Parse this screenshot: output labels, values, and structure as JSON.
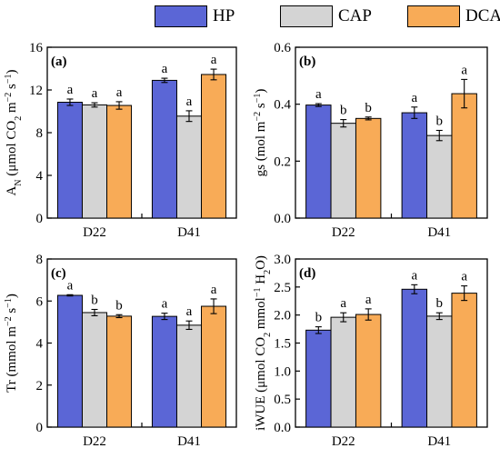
{
  "legend": {
    "items": [
      {
        "label": "HP",
        "color": "#5b66d6"
      },
      {
        "label": "CAP",
        "color": "#d4d4d4"
      },
      {
        "label": "DCAP",
        "color": "#f8ab57"
      }
    ]
  },
  "chart_data": [
    {
      "type": "bar",
      "panel": "(a)",
      "ylabel": "A_N (μmol CO₂ m⁻² s⁻¹)",
      "ylim": [
        0,
        16
      ],
      "yticks": [
        0,
        4,
        8,
        12,
        16
      ],
      "categories": [
        "D22",
        "D41"
      ],
      "series": [
        {
          "name": "HP",
          "values": [
            10.85,
            12.9
          ],
          "errors": [
            0.3,
            0.2
          ]
        },
        {
          "name": "CAP",
          "values": [
            10.6,
            9.55
          ],
          "errors": [
            0.2,
            0.5
          ]
        },
        {
          "name": "DCAP",
          "values": [
            10.55,
            13.45
          ],
          "errors": [
            0.35,
            0.5
          ]
        }
      ],
      "letters": [
        [
          "a",
          "a",
          "a"
        ],
        [
          "a",
          "a",
          "a"
        ]
      ]
    },
    {
      "type": "bar",
      "panel": "(b)",
      "ylabel": "gs (mol m⁻² s⁻¹)",
      "ylim": [
        0,
        0.6
      ],
      "yticks": [
        0.0,
        0.2,
        0.4,
        0.6
      ],
      "categories": [
        "D22",
        "D41"
      ],
      "series": [
        {
          "name": "HP",
          "values": [
            0.397,
            0.37
          ],
          "errors": [
            0.005,
            0.02
          ]
        },
        {
          "name": "CAP",
          "values": [
            0.333,
            0.29
          ],
          "errors": [
            0.013,
            0.018
          ]
        },
        {
          "name": "DCAP",
          "values": [
            0.35,
            0.437
          ],
          "errors": [
            0.005,
            0.05
          ]
        }
      ],
      "letters": [
        [
          "a",
          "b",
          "b"
        ],
        [
          "a",
          "b",
          "a"
        ]
      ]
    },
    {
      "type": "bar",
      "panel": "(c)",
      "ylabel": "Tr (mmol m⁻² s⁻¹)",
      "ylim": [
        0,
        8
      ],
      "yticks": [
        0,
        2,
        4,
        6,
        8
      ],
      "categories": [
        "D22",
        "D41"
      ],
      "series": [
        {
          "name": "HP",
          "values": [
            6.27,
            5.27
          ],
          "errors": [
            0.03,
            0.15
          ]
        },
        {
          "name": "CAP",
          "values": [
            5.45,
            4.85
          ],
          "errors": [
            0.15,
            0.2
          ]
        },
        {
          "name": "DCAP",
          "values": [
            5.28,
            5.75
          ],
          "errors": [
            0.07,
            0.35
          ]
        }
      ],
      "letters": [
        [
          "a",
          "b",
          "b"
        ],
        [
          "a",
          "a",
          "a"
        ]
      ]
    },
    {
      "type": "bar",
      "panel": "(d)",
      "ylabel": "iWUE (μmol CO₂ mmol⁻¹ H₂O)",
      "ylim": [
        0,
        3.0
      ],
      "yticks": [
        0.0,
        0.5,
        1.0,
        1.5,
        2.0,
        2.5,
        3.0
      ],
      "categories": [
        "D22",
        "D41"
      ],
      "series": [
        {
          "name": "HP",
          "values": [
            1.73,
            2.46
          ],
          "errors": [
            0.06,
            0.08
          ]
        },
        {
          "name": "CAP",
          "values": [
            1.96,
            1.98
          ],
          "errors": [
            0.08,
            0.06
          ]
        },
        {
          "name": "DCAP",
          "values": [
            2.01,
            2.39
          ],
          "errors": [
            0.1,
            0.13
          ]
        }
      ],
      "letters": [
        [
          "b",
          "a",
          "a"
        ],
        [
          "a",
          "b",
          "a"
        ]
      ]
    }
  ]
}
